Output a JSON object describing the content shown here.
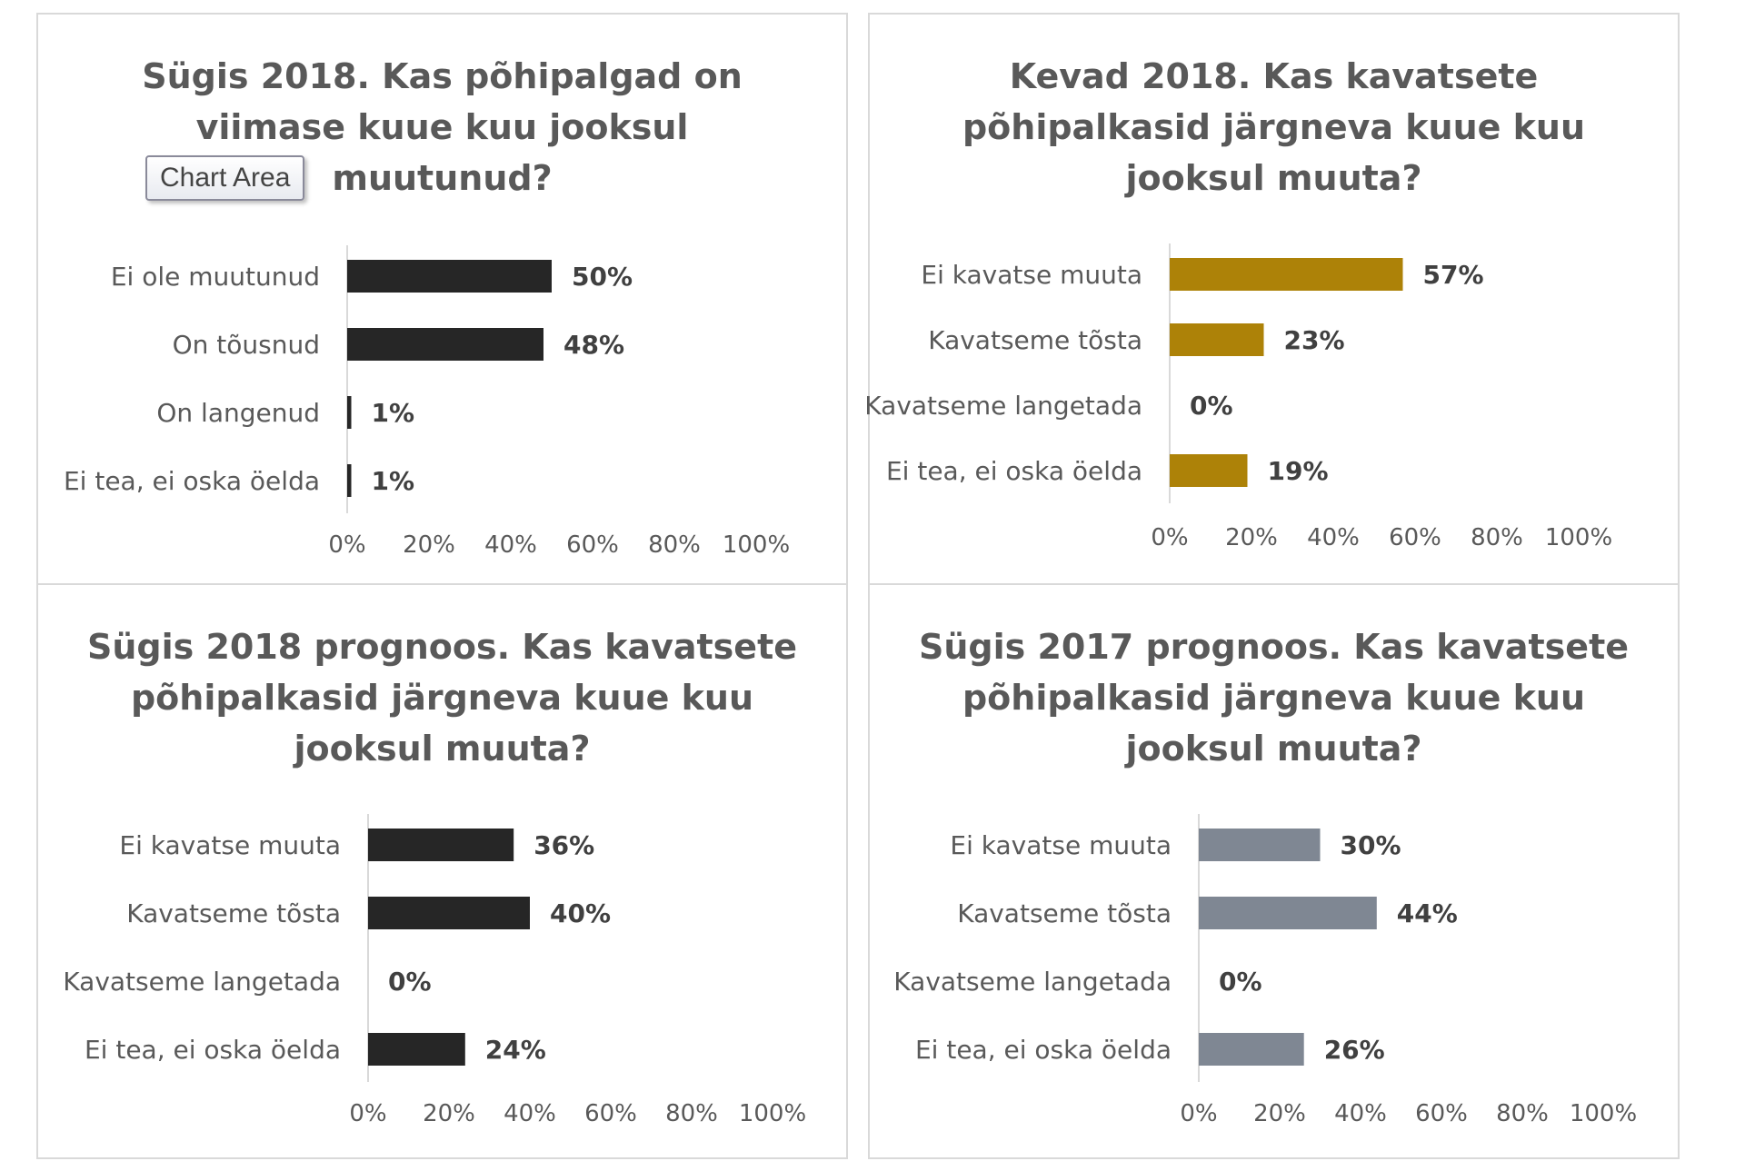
{
  "tooltip": {
    "label": "Chart Area"
  },
  "chart_data": [
    {
      "type": "bar",
      "orientation": "horizontal",
      "title": "Sügis 2018. Kas põhipalgad on\nviimase kuue kuu jooksul\nmuutunud?",
      "categories": [
        "Ei ole muutunud",
        "On tõusnud",
        "On langenud",
        "Ei tea, ei oska öelda"
      ],
      "values": [
        50,
        48,
        1,
        1
      ],
      "value_labels": [
        "50%",
        "48%",
        "1%",
        "1%"
      ],
      "xlim": [
        0,
        100
      ],
      "ticks": [
        "0%",
        "20%",
        "40%",
        "60%",
        "80%",
        "100%"
      ],
      "color": "#262626"
    },
    {
      "type": "bar",
      "orientation": "horizontal",
      "title": "Kevad 2018. Kas kavatsete\npõhipalkasid järgneva kuue kuu\njooksul muuta?",
      "categories": [
        "Ei kavatse muuta",
        "Kavatseme tõsta",
        "Kavatseme langetada",
        "Ei tea, ei oska öelda"
      ],
      "values": [
        57,
        23,
        0,
        19
      ],
      "value_labels": [
        "57%",
        "23%",
        "0%",
        "19%"
      ],
      "xlim": [
        0,
        100
      ],
      "ticks": [
        "0%",
        "20%",
        "40%",
        "60%",
        "80%",
        "100%"
      ],
      "color": "#ad8208"
    },
    {
      "type": "bar",
      "orientation": "horizontal",
      "title": "Sügis 2018 prognoos. Kas kavatsete\npõhipalkasid järgneva kuue kuu\njooksul muuta?",
      "categories": [
        "Ei kavatse muuta",
        "Kavatseme tõsta",
        "Kavatseme langetada",
        "Ei tea, ei oska öelda"
      ],
      "values": [
        36,
        40,
        0,
        24
      ],
      "value_labels": [
        "36%",
        "40%",
        "0%",
        "24%"
      ],
      "xlim": [
        0,
        100
      ],
      "ticks": [
        "0%",
        "20%",
        "40%",
        "60%",
        "80%",
        "100%"
      ],
      "color": "#262626"
    },
    {
      "type": "bar",
      "orientation": "horizontal",
      "title": "Sügis 2017 prognoos. Kas kavatsete\npõhipalkasid järgneva kuue kuu\njooksul muuta?",
      "categories": [
        "Ei kavatse muuta",
        "Kavatseme tõsta",
        "Kavatseme langetada",
        "Ei tea, ei oska öelda"
      ],
      "values": [
        30,
        44,
        0,
        26
      ],
      "value_labels": [
        "30%",
        "44%",
        "0%",
        "26%"
      ],
      "xlim": [
        0,
        100
      ],
      "ticks": [
        "0%",
        "20%",
        "40%",
        "60%",
        "80%",
        "100%"
      ],
      "color": "#7f8793"
    }
  ]
}
